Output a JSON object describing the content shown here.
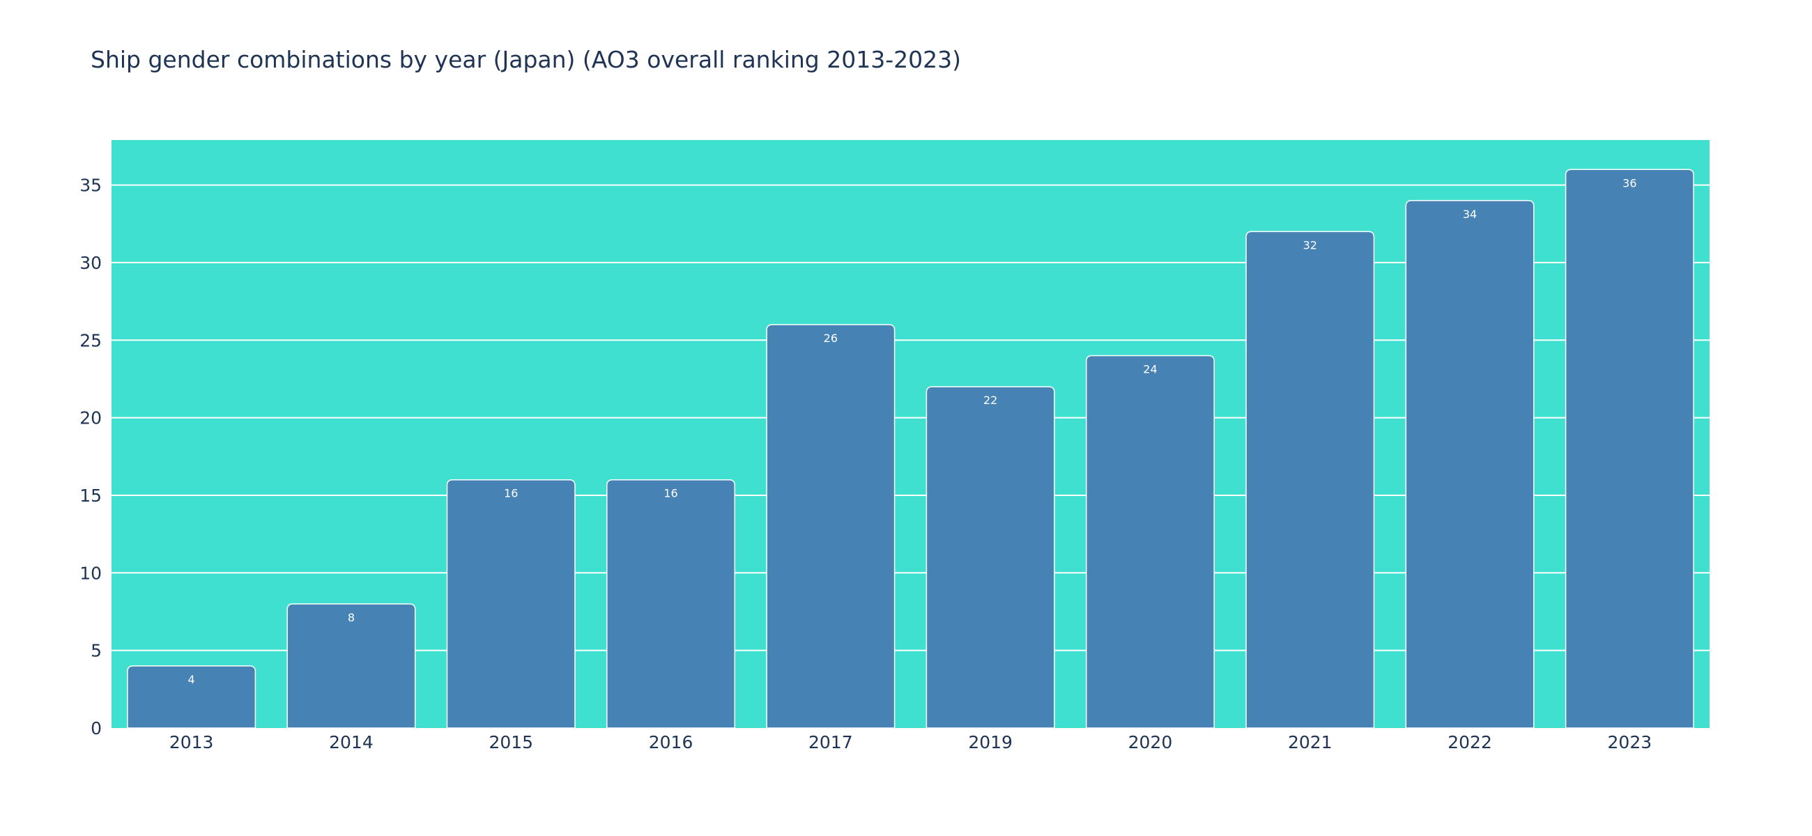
{
  "chart_data": {
    "type": "bar",
    "title": "Ship gender combinations by year (Japan) (AO3 overall ranking 2013-2023)",
    "xlabel": "",
    "ylabel": "",
    "categories": [
      "2013",
      "2014",
      "2015",
      "2016",
      "2017",
      "2019",
      "2020",
      "2021",
      "2022",
      "2023"
    ],
    "values": [
      4,
      8,
      16,
      16,
      26,
      22,
      24,
      32,
      34,
      36
    ],
    "data_labels": [
      "4",
      "8",
      "16",
      "16",
      "26",
      "22",
      "24",
      "32",
      "34",
      "36"
    ],
    "ylim": [
      0,
      37.9
    ],
    "yticks": [
      0,
      5,
      10,
      15,
      20,
      25,
      30,
      35
    ],
    "ytick_labels": [
      "0",
      "5",
      "10",
      "15",
      "20",
      "25",
      "30",
      "35"
    ],
    "grid": true,
    "legend": false,
    "colors": {
      "plot_background": "#40e0d0",
      "bar_fill": "#4682b4",
      "bar_stroke": "#ffffff",
      "grid": "#ffffff",
      "text": "#1f3454",
      "data_label": "#ffffff"
    }
  }
}
